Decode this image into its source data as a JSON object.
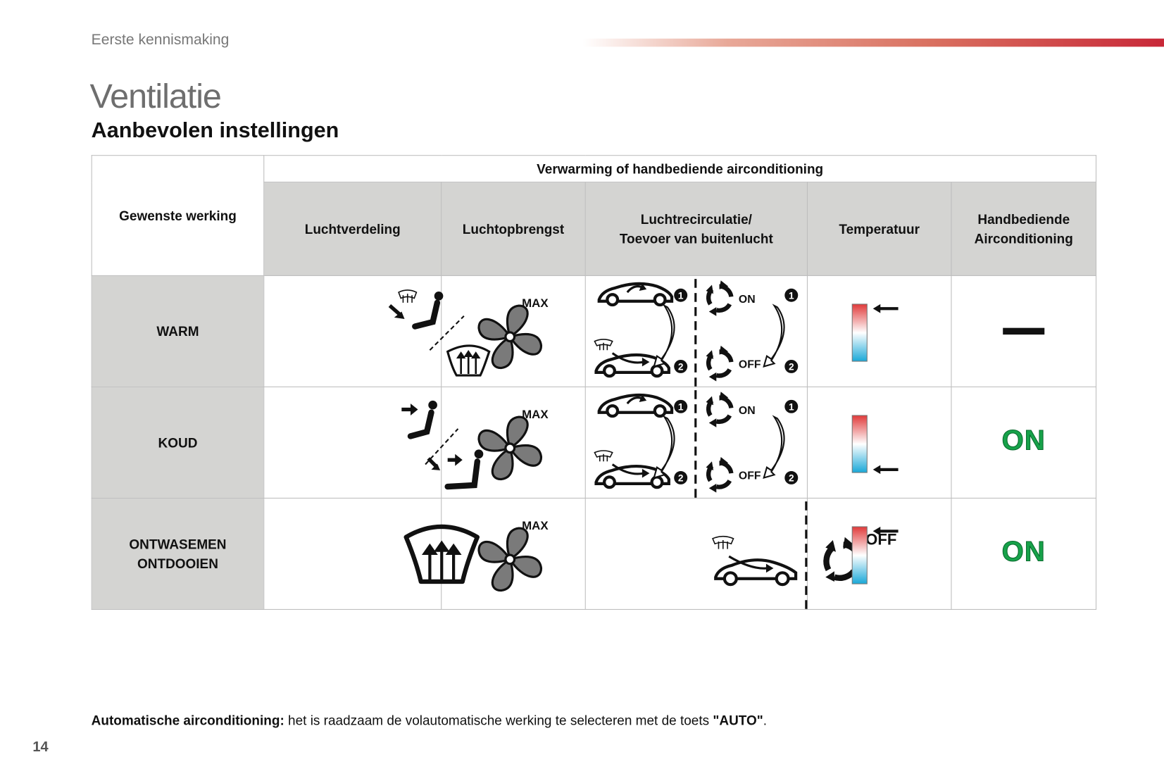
{
  "header": {
    "section": "Eerste kennismaking",
    "title": "Ventilatie",
    "subtitle": "Aanbevolen instellingen"
  },
  "table": {
    "group_header": "Verwarming of handbediende airconditioning",
    "col_desired": "Gewenste werking",
    "columns": [
      "Luchtverdeling",
      "Luchtopbrengst",
      "Luchtrecirculatie/",
      "Toevoer van buitenlucht",
      "Temperatuur",
      "Handbediende",
      "Airconditioning"
    ],
    "rows": [
      {
        "label": "WARM",
        "ac": "dash",
        "temp_arrow": "top"
      },
      {
        "label": "KOUD",
        "ac": "ON",
        "temp_arrow": "bottom"
      },
      {
        "label": "ONTWASEMEN",
        "label2": "ONTDOOIEN",
        "ac": "ON",
        "temp_arrow": "top"
      }
    ],
    "icon_text": {
      "max": "MAX",
      "on": "ON",
      "off": "OFF",
      "one": "1",
      "two": "2"
    }
  },
  "colors": {
    "accent": "#c82838",
    "ac_on": "#17a24a",
    "header_bg": "#d4d4d2"
  },
  "note": {
    "bold": "Automatische airconditioning:",
    "text": " het is raadzaam de volautomatische werking te selecteren met de toets ",
    "key": "\"AUTO\"",
    "end": "."
  },
  "page_number": "14"
}
